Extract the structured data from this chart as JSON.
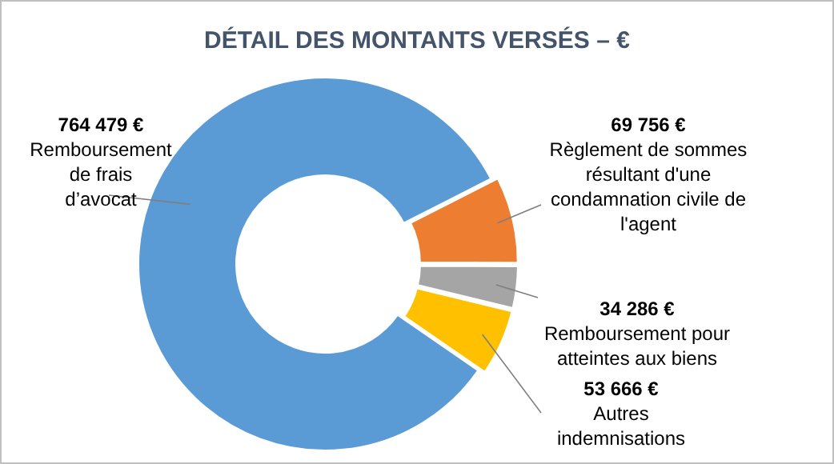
{
  "chart_data": {
    "type": "donut",
    "title": "DÉTAIL DES MONTANTS VERSÉS – €",
    "categories": [
      "Remboursement de frais d’avocat",
      "Règlement de sommes résultant d'une condamnation civile de l'agent",
      "Remboursement pour atteintes aux biens",
      "Autres indemnisations"
    ],
    "values": [
      764479,
      69756,
      34286,
      53666
    ],
    "value_labels": [
      "764 479 €",
      "69 756 €",
      "34 286 €",
      "53 666 €"
    ],
    "colors": [
      "#5b9bd5",
      "#ed7d31",
      "#a5a5a5",
      "#ffc000"
    ]
  }
}
